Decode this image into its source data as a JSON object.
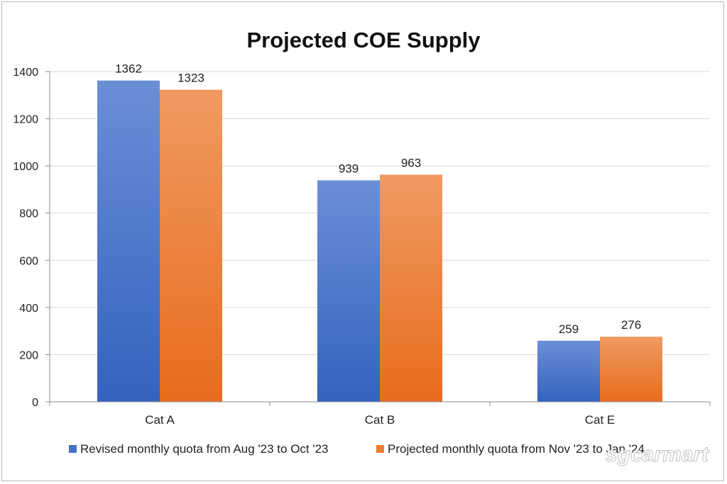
{
  "chart_data": {
    "type": "bar",
    "title": "Projected COE Supply",
    "categories": [
      "Cat A",
      "Cat B",
      "Cat E"
    ],
    "series": [
      {
        "name": "Revised monthly quota from Aug '23 to Oct '23",
        "values": [
          1362,
          939,
          259
        ],
        "color": "#4472C4"
      },
      {
        "name": "Projected monthly quota from Nov '23 to Jan '24",
        "values": [
          1323,
          963,
          276
        ],
        "color": "#ED7D31"
      }
    ],
    "xlabel": "",
    "ylabel": "",
    "ylim": [
      0,
      1400
    ],
    "yticks": [
      0,
      200,
      400,
      600,
      800,
      1000,
      1200,
      1400
    ],
    "grid": true,
    "legend": "bottom"
  },
  "watermark": "sgcarmart"
}
